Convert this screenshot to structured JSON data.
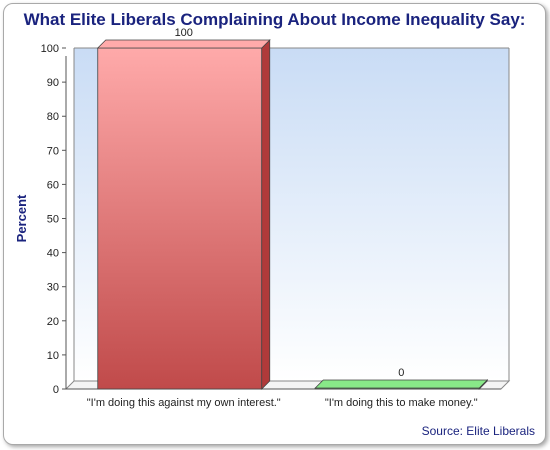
{
  "chart_data": {
    "type": "bar",
    "title": "What Elite Liberals Complaining About Income Inequality Say:",
    "ylabel": "Percent",
    "xlabel": "",
    "categories": [
      "\"I'm doing this against my own interest.\"",
      "\"I'm doing this to make money.\""
    ],
    "values": [
      100,
      0
    ],
    "value_labels": [
      "100",
      "0"
    ],
    "ylim": [
      0,
      100
    ],
    "yticks": [
      0,
      10,
      20,
      30,
      40,
      50,
      60,
      70,
      80,
      90,
      100
    ],
    "grid": false,
    "legend": "none",
    "source": "Source: Elite Liberals",
    "colors": {
      "bar1_top": "#ffaaaa",
      "bar1_bottom": "#c04a4a",
      "bar1_side": "#b03a3a",
      "bar2": "#88e888",
      "bar2_side": "#5fc45f",
      "title": "#1a237e",
      "bg_top": "#c9dcf5",
      "bg_bottom": "#ffffff"
    }
  }
}
